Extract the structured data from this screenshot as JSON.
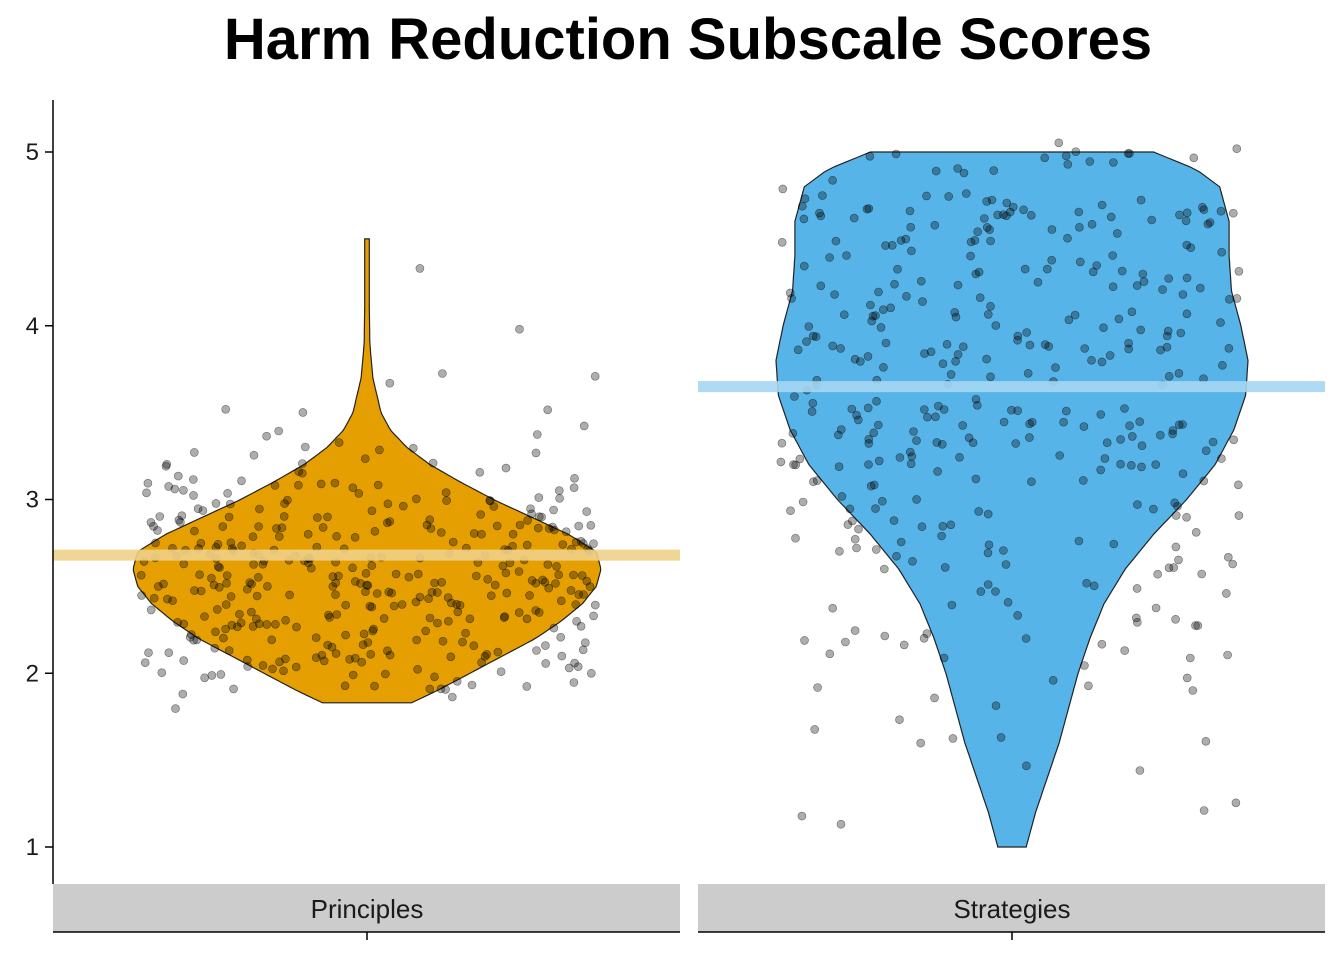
{
  "chart_data": {
    "type": "violin",
    "title": "Harm Reduction Subscale Scores",
    "xlabel": "",
    "ylabel": "",
    "ylim": [
      0.8,
      5.3
    ],
    "y_ticks": [
      1,
      2,
      3,
      4,
      5
    ],
    "grid": false,
    "point_count_per_panel": 380,
    "panels": [
      {
        "name": "Principles",
        "fill_color": "#E69F00",
        "mean_line_color": "#F0D08A",
        "mean": 2.68,
        "min": 1.83,
        "max": 4.5,
        "density_profile": [
          [
            1.83,
            0.19
          ],
          [
            1.9,
            0.3
          ],
          [
            2.0,
            0.44
          ],
          [
            2.1,
            0.58
          ],
          [
            2.2,
            0.72
          ],
          [
            2.3,
            0.83
          ],
          [
            2.4,
            0.92
          ],
          [
            2.5,
            0.98
          ],
          [
            2.6,
            1.0
          ],
          [
            2.7,
            0.98
          ],
          [
            2.8,
            0.86
          ],
          [
            2.9,
            0.7
          ],
          [
            3.0,
            0.54
          ],
          [
            3.1,
            0.4
          ],
          [
            3.2,
            0.27
          ],
          [
            3.3,
            0.17
          ],
          [
            3.4,
            0.1
          ],
          [
            3.5,
            0.06
          ],
          [
            3.7,
            0.025
          ],
          [
            3.9,
            0.012
          ],
          [
            4.1,
            0.01
          ],
          [
            4.3,
            0.01
          ],
          [
            4.5,
            0.01
          ]
        ]
      },
      {
        "name": "Strategies",
        "fill_color": "#56B4E9",
        "mean_line_color": "#A6D6F2",
        "mean": 3.65,
        "min": 1.0,
        "max": 5.0,
        "density_profile": [
          [
            1.0,
            0.06
          ],
          [
            1.2,
            0.1
          ],
          [
            1.4,
            0.15
          ],
          [
            1.6,
            0.2
          ],
          [
            1.8,
            0.24
          ],
          [
            2.0,
            0.28
          ],
          [
            2.2,
            0.33
          ],
          [
            2.4,
            0.39
          ],
          [
            2.6,
            0.48
          ],
          [
            2.8,
            0.6
          ],
          [
            3.0,
            0.74
          ],
          [
            3.2,
            0.86
          ],
          [
            3.4,
            0.94
          ],
          [
            3.6,
            0.99
          ],
          [
            3.8,
            1.0
          ],
          [
            4.0,
            0.97
          ],
          [
            4.2,
            0.93
          ],
          [
            4.4,
            0.92
          ],
          [
            4.6,
            0.92
          ],
          [
            4.8,
            0.88
          ],
          [
            4.9,
            0.78
          ],
          [
            5.0,
            0.6
          ]
        ]
      }
    ]
  }
}
